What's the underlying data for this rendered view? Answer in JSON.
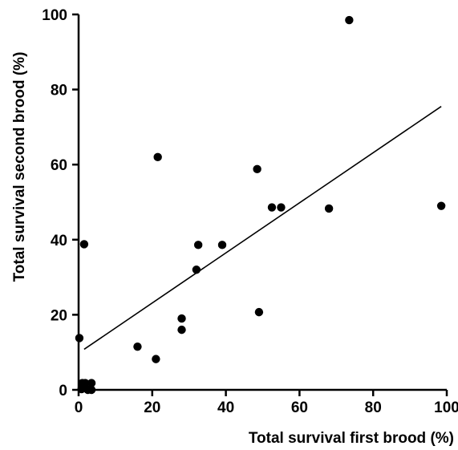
{
  "chart_data": {
    "type": "scatter",
    "title": "",
    "xlabel": "Total survival first brood (%)",
    "ylabel": "Total survival second brood (%)",
    "xlim": [
      0,
      100
    ],
    "ylim": [
      0,
      100
    ],
    "xticks": [
      0,
      20,
      40,
      60,
      80,
      100
    ],
    "yticks": [
      0,
      20,
      40,
      60,
      80,
      100
    ],
    "grid": false,
    "legend": "none",
    "points": [
      {
        "x": 73.5,
        "y": 98.5
      },
      {
        "x": 21.5,
        "y": 62.0
      },
      {
        "x": 48.5,
        "y": 58.8
      },
      {
        "x": 1.5,
        "y": 38.8
      },
      {
        "x": 32.5,
        "y": 38.6
      },
      {
        "x": 39.0,
        "y": 38.6
      },
      {
        "x": 32.0,
        "y": 32.0
      },
      {
        "x": 52.5,
        "y": 48.6
      },
      {
        "x": 55.0,
        "y": 48.6
      },
      {
        "x": 68.0,
        "y": 48.3
      },
      {
        "x": 98.5,
        "y": 49.0
      },
      {
        "x": 49.0,
        "y": 20.7
      },
      {
        "x": 28.0,
        "y": 19.0
      },
      {
        "x": 28.0,
        "y": 16.0
      },
      {
        "x": 16.0,
        "y": 11.5
      },
      {
        "x": 21.0,
        "y": 8.2
      },
      {
        "x": 0.2,
        "y": 13.8
      },
      {
        "x": 1.0,
        "y": 1.8
      },
      {
        "x": 1.8,
        "y": 1.8
      },
      {
        "x": 3.5,
        "y": 1.8
      },
      {
        "x": 0.8,
        "y": 0.2
      },
      {
        "x": 2.5,
        "y": 0.0
      },
      {
        "x": 3.5,
        "y": 0.0
      }
    ],
    "fit_line": {
      "x": [
        1.5,
        98.5
      ],
      "y": [
        10.8,
        75.5
      ]
    }
  }
}
